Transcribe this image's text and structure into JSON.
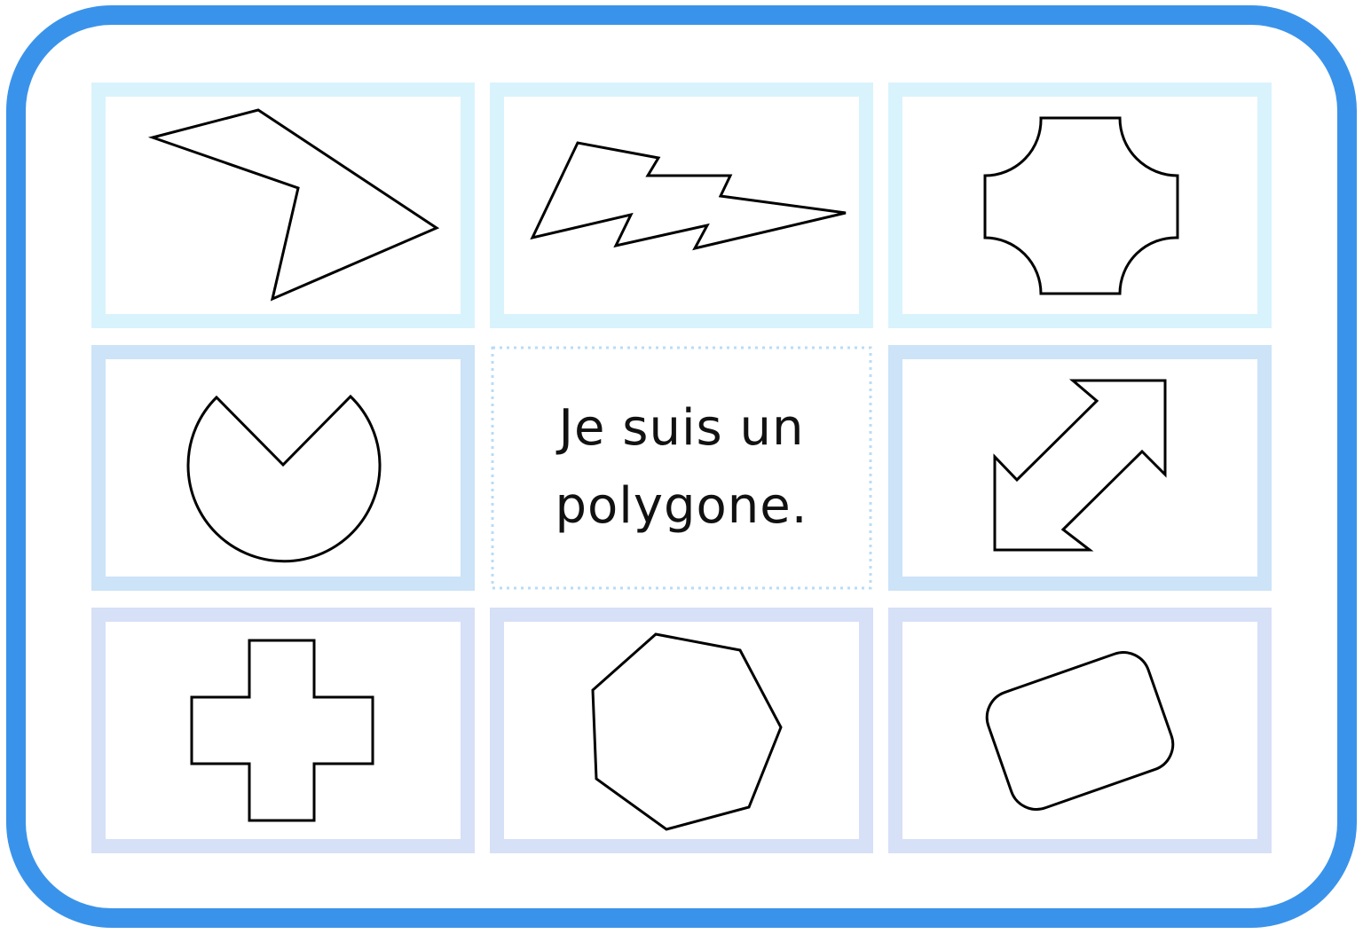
{
  "card": {
    "text": "Je suis un polygone."
  }
}
